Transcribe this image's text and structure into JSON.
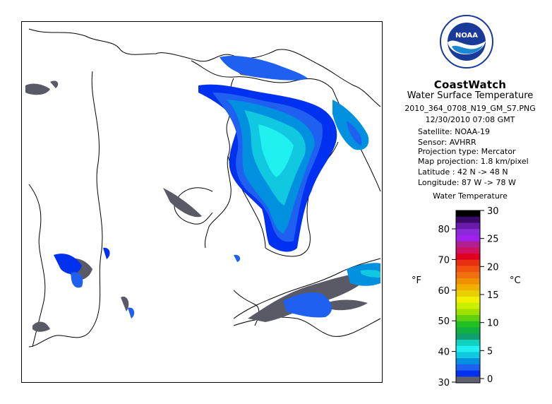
{
  "header": {
    "logo_text": "NOAA",
    "logo_ring_text": "NATIONAL OCEANIC AND ATMOSPHERIC ADMINISTRATION",
    "title": "CoastWatch",
    "subtitle": "Water Surface Temperature",
    "filename": "2010_364_0708_N19_GM_S7.PNG",
    "datetime": "12/30/2010   07:08 GMT"
  },
  "metadata": [
    {
      "label": "Satellite:",
      "value": "NOAA-19"
    },
    {
      "label": "Sensor:",
      "value": "AVHRR"
    },
    {
      "label": "Projection type:",
      "value": "Mercator"
    },
    {
      "label": "Map projection:",
      "value": "1.8 km/pixel"
    },
    {
      "label": "Latitude :",
      "value": "42 N -> 48 N"
    },
    {
      "label": "Longitude:",
      "value": "87 W -> 78 W"
    }
  ],
  "colorbar": {
    "title": "Water Temperature",
    "unit_f": "°F",
    "unit_c": "°C",
    "ticks_f": [
      "80",
      "70",
      "60",
      "50",
      "40",
      "30"
    ],
    "ticks_c": [
      "30",
      "25",
      "20",
      "15",
      "10",
      "5",
      "0"
    ],
    "colors": [
      "#000000",
      "#3a0a6a",
      "#6a1aa8",
      "#8a2ad8",
      "#a020f0",
      "#b02090",
      "#d01060",
      "#e00020",
      "#e83010",
      "#f05010",
      "#f07010",
      "#f09000",
      "#f0b000",
      "#e8d000",
      "#f0f000",
      "#c8f000",
      "#a0e000",
      "#60d010",
      "#20c020",
      "#10b040",
      "#10a070",
      "#10d0c0",
      "#20f0f0",
      "#10c8e0",
      "#0090e0",
      "#2060f0",
      "#0030f0",
      "#606070"
    ],
    "range_c": [
      0,
      30
    ],
    "range_f": [
      30,
      86
    ]
  },
  "map": {
    "region": "Lake Huron / Georgian Bay, Lake Erie",
    "cloud_color": "#5a5a66",
    "land_color": "#ffffff",
    "coast_color": "#000000"
  }
}
